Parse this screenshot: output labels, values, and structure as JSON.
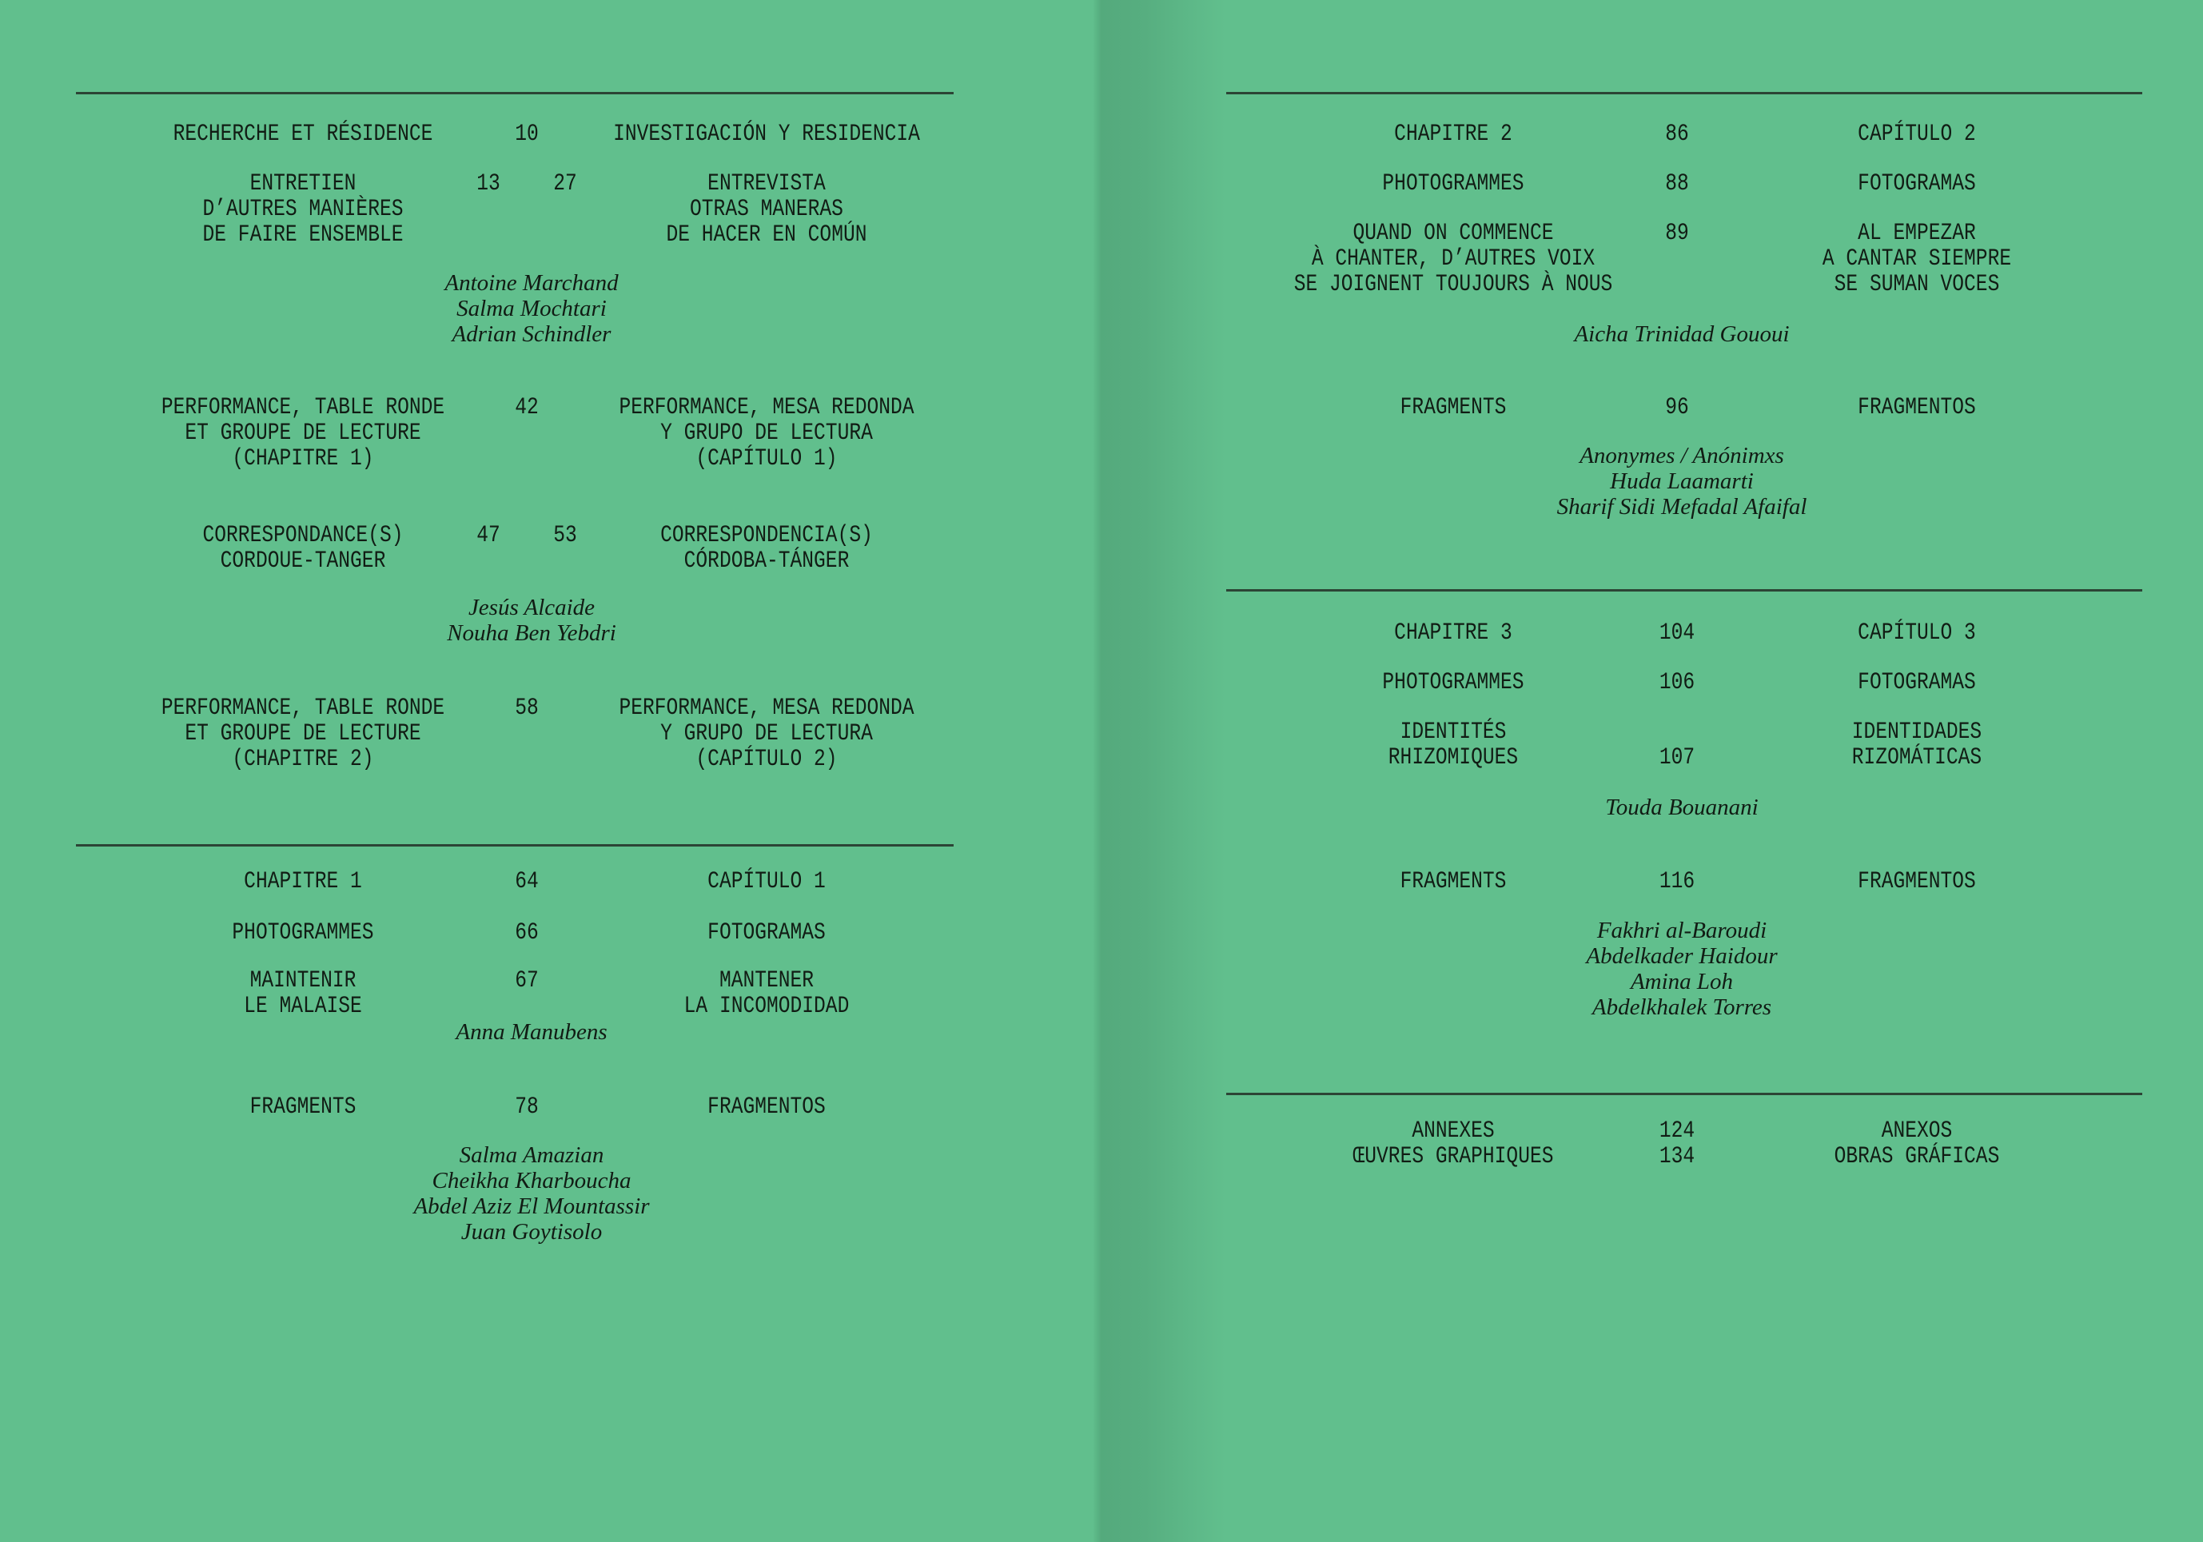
{
  "colors": {
    "background": "#61bf8d",
    "text": "#111c14",
    "rule": "#2c4435"
  },
  "pages": [
    {
      "side": "left",
      "entries": [
        {
          "id": "r1",
          "kind": "entry",
          "fr": [
            "RECHERCHE ET RÉSIDENCE"
          ],
          "nums": [
            "10"
          ],
          "es": [
            "INVESTIGACIÓN Y RESIDENCIA"
          ]
        },
        {
          "id": "r2",
          "kind": "entry",
          "fr": [
            "ENTRETIEN",
            "D’AUTRES MANIÈRES",
            "DE FAIRE ENSEMBLE"
          ],
          "nums": [
            "13",
            "27"
          ],
          "es": [
            "ENTREVISTA",
            "OTRAS MANERAS",
            "DE HACER EN COMÚN"
          ]
        },
        {
          "id": "a1",
          "kind": "authors",
          "lines": [
            "Antoine Marchand",
            "Salma Mochtari",
            "Adrian Schindler"
          ]
        },
        {
          "id": "r3",
          "kind": "entry",
          "fr": [
            "PERFORMANCE, TABLE RONDE",
            "ET GROUPE DE LECTURE",
            "(CHAPITRE 1)"
          ],
          "nums": [
            "42"
          ],
          "es": [
            "PERFORMANCE, MESA REDONDA",
            "Y GRUPO DE LECTURA",
            "(CAPÍTULO 1)"
          ]
        },
        {
          "id": "r4",
          "kind": "entry",
          "fr": [
            "CORRESPONDANCE(S)",
            "CORDOUE-TANGER"
          ],
          "nums": [
            "47",
            "53"
          ],
          "es": [
            "CORRESPONDENCIA(S)",
            "CÓRDOBA-TÁNGER"
          ]
        },
        {
          "id": "a2",
          "kind": "authors",
          "lines": [
            "Jesús Alcaide",
            "Nouha Ben Yebdri"
          ]
        },
        {
          "id": "r5",
          "kind": "entry",
          "fr": [
            "PERFORMANCE, TABLE RONDE",
            "ET GROUPE DE LECTURE",
            "(CHAPITRE 2)"
          ],
          "nums": [
            "58"
          ],
          "es": [
            "PERFORMANCE, MESA REDONDA",
            "Y GRUPO DE LECTURA",
            "(CAPÍTULO 2)"
          ]
        },
        {
          "id": "r6",
          "kind": "entry",
          "fr": [
            "CHAPITRE 1"
          ],
          "nums": [
            "64"
          ],
          "es": [
            "CAPÍTULO 1"
          ]
        },
        {
          "id": "r7",
          "kind": "entry",
          "fr": [
            "PHOTOGRAMMES"
          ],
          "nums": [
            "66"
          ],
          "es": [
            "FOTOGRAMAS"
          ]
        },
        {
          "id": "r8",
          "kind": "entry",
          "fr": [
            "MAINTENIR",
            "LE MALAISE"
          ],
          "nums": [
            "67"
          ],
          "es": [
            "MANTENER",
            "LA INCOMODIDAD"
          ]
        },
        {
          "id": "a3",
          "kind": "authors",
          "lines": [
            "Anna Manubens"
          ]
        },
        {
          "id": "r9",
          "kind": "entry",
          "fr": [
            "FRAGMENTS"
          ],
          "nums": [
            "78"
          ],
          "es": [
            "FRAGMENTOS"
          ]
        },
        {
          "id": "a4",
          "kind": "authors",
          "lines": [
            "Salma Amazian",
            "Cheikha Kharboucha",
            "Abdel Aziz El Mountassir",
            "Juan Goytisolo"
          ]
        }
      ]
    },
    {
      "side": "right",
      "entries": [
        {
          "id": "r1",
          "kind": "entry",
          "fr": [
            "CHAPITRE 2"
          ],
          "nums": [
            "86"
          ],
          "es": [
            "CAPÍTULO 2"
          ]
        },
        {
          "id": "r2",
          "kind": "entry",
          "fr": [
            "PHOTOGRAMMES"
          ],
          "nums": [
            "88"
          ],
          "es": [
            "FOTOGRAMAS"
          ]
        },
        {
          "id": "r3",
          "kind": "entry",
          "fr": [
            "QUAND ON COMMENCE",
            "À CHANTER, D’AUTRES VOIX",
            "SE JOIGNENT TOUJOURS À NOUS"
          ],
          "nums": [
            "89"
          ],
          "es": [
            "AL EMPEZAR",
            "A CANTAR SIEMPRE",
            "SE SUMAN VOCES"
          ]
        },
        {
          "id": "a1",
          "kind": "authors",
          "lines": [
            "Aicha Trinidad Gououi"
          ]
        },
        {
          "id": "r4",
          "kind": "entry",
          "fr": [
            "FRAGMENTS"
          ],
          "nums": [
            "96"
          ],
          "es": [
            "FRAGMENTOS"
          ]
        },
        {
          "id": "a2",
          "kind": "authors",
          "lines": [
            "Anonymes / Anónimxs",
            "Huda Laamarti",
            "Sharif Sidi Mefadal Afaifal"
          ]
        },
        {
          "id": "r5",
          "kind": "entry",
          "fr": [
            "CHAPITRE 3"
          ],
          "nums": [
            "104"
          ],
          "es": [
            "CAPÍTULO 3"
          ]
        },
        {
          "id": "r6",
          "kind": "entry",
          "fr": [
            "PHOTOGRAMMES"
          ],
          "nums": [
            "106"
          ],
          "es": [
            "FOTOGRAMAS"
          ]
        },
        {
          "id": "r7",
          "kind": "entry",
          "fr": [
            "IDENTITÉS",
            "RHIZOMIQUES"
          ],
          "nums": [
            "107"
          ],
          "num_line": 1,
          "es": [
            "IDENTIDADES",
            "RIZOMÁTICAS"
          ]
        },
        {
          "id": "a3",
          "kind": "authors",
          "lines": [
            "Touda Bouanani"
          ]
        },
        {
          "id": "r8",
          "kind": "entry",
          "fr": [
            "FRAGMENTS"
          ],
          "nums": [
            "116"
          ],
          "es": [
            "FRAGMENTOS"
          ]
        },
        {
          "id": "a4",
          "kind": "authors",
          "lines": [
            "Fakhri al-Baroudi",
            "Abdelkader Haidour",
            "Amina Loh",
            "Abdelkhalek Torres"
          ]
        },
        {
          "id": "r9",
          "kind": "entry",
          "fr": [
            "ANNEXES",
            "ŒUVRES GRAPHIQUES"
          ],
          "nums": [
            "124",
            "134"
          ],
          "nums_stacked": true,
          "es": [
            "ANEXOS",
            "OBRAS GRÁFICAS"
          ]
        }
      ]
    }
  ]
}
